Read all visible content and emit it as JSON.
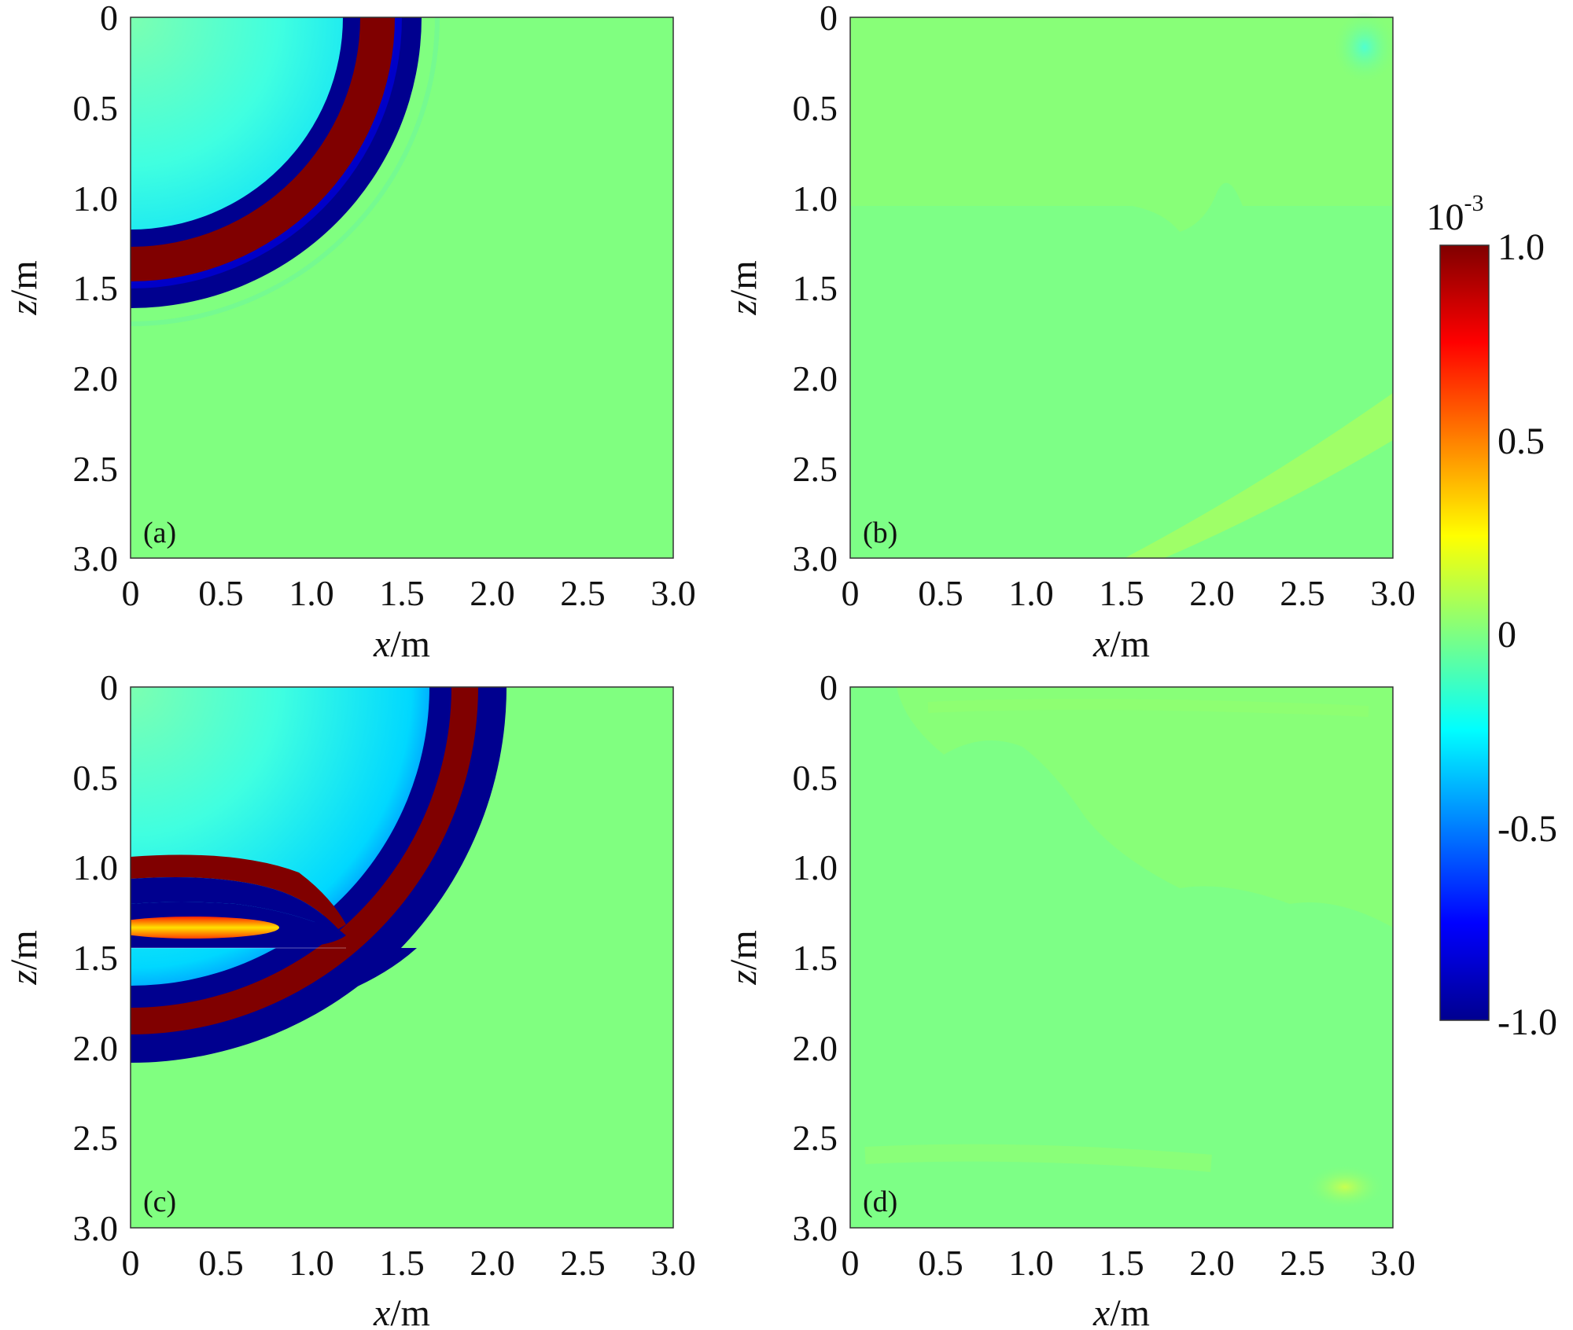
{
  "chart_data": [
    {
      "type": "heatmap",
      "panel_label": "(a)",
      "xlabel": {
        "var": "x",
        "unit": "/m"
      },
      "ylabel": {
        "var": "z",
        "unit": "/m"
      },
      "xlim": [
        0,
        3.0
      ],
      "ylim": [
        0,
        3.0
      ],
      "y_direction": "down",
      "xticks": [
        "0",
        "0.5",
        "1.0",
        "1.5",
        "2.0",
        "2.5",
        "3.0"
      ],
      "yticks": [
        "0",
        "0.5",
        "1.0",
        "1.5",
        "2.0",
        "2.5",
        "3.0"
      ],
      "field": {
        "background": 0.0,
        "source": {
          "x": 0,
          "z": 0
        },
        "inner_low_disc": {
          "radius": 1.3,
          "value": -0.45
        },
        "bands": [
          {
            "r_inner": 1.32,
            "r_outer": 1.52,
            "value": 1.0
          },
          {
            "r_inner": 1.52,
            "r_outer": 1.68,
            "value": -1.0
          }
        ],
        "inner_blue_rim": {
          "r_inner": 1.18,
          "r_outer": 1.32,
          "value": -1.0
        }
      }
    },
    {
      "type": "heatmap",
      "panel_label": "(b)",
      "xlabel": {
        "var": "x",
        "unit": "/m"
      },
      "ylabel": {
        "var": "z",
        "unit": "/m"
      },
      "xlim": [
        0,
        3.0
      ],
      "ylim": [
        0,
        3.0
      ],
      "y_direction": "down",
      "xticks": [
        "0",
        "0.5",
        "1.0",
        "1.5",
        "2.0",
        "2.5",
        "3.0"
      ],
      "yticks": [
        "0",
        "0.5",
        "1.0",
        "1.5",
        "2.0",
        "2.5",
        "3.0"
      ],
      "field": {
        "background": 0.0,
        "features": [
          {
            "kind": "region",
            "zmax": 1.1,
            "value": 0.05
          },
          {
            "kind": "spot",
            "x": 2.85,
            "z": 0.2,
            "value": -0.2
          },
          {
            "kind": "streak",
            "from": [
              2.0,
              3.0
            ],
            "to": [
              3.0,
              2.2
            ],
            "value": 0.15
          }
        ]
      }
    },
    {
      "type": "heatmap",
      "panel_label": "(c)",
      "xlabel": {
        "var": "x",
        "unit": "/m"
      },
      "ylabel": {
        "var": "z",
        "unit": "/m"
      },
      "xlim": [
        0,
        3.0
      ],
      "ylim": [
        0,
        3.0
      ],
      "y_direction": "down",
      "xticks": [
        "0",
        "0.5",
        "1.0",
        "1.5",
        "2.0",
        "2.5",
        "3.0"
      ],
      "yticks": [
        "0",
        "0.5",
        "1.0",
        "1.5",
        "2.0",
        "2.5",
        "3.0"
      ],
      "field": {
        "background": 0.0,
        "interface_depth": 1.5,
        "inner_low_disc": {
          "radius": 1.3,
          "value": -0.45
        },
        "direct_bands": [
          {
            "r_inner": 1.72,
            "r_outer": 1.95,
            "value": 1.0
          },
          {
            "r_inner": 1.95,
            "r_outer": 2.1,
            "value": -1.0
          }
        ],
        "reflected_bands": [
          {
            "z_top": 0.95,
            "z_bottom": 1.1,
            "value": 1.0
          },
          {
            "z_top": 1.55,
            "z_bottom": 1.75,
            "value": 1.0
          }
        ],
        "refracted_low": {
          "z_bottom": 1.82,
          "value": -1.0
        },
        "yellow_lens": {
          "x": 0.35,
          "z": 1.35,
          "value": 0.35
        }
      }
    },
    {
      "type": "heatmap",
      "panel_label": "(d)",
      "xlabel": {
        "var": "x",
        "unit": "/m"
      },
      "ylabel": {
        "var": "z",
        "unit": "/m"
      },
      "xlim": [
        0,
        3.0
      ],
      "ylim": [
        0,
        3.0
      ],
      "y_direction": "down",
      "xticks": [
        "0",
        "0.5",
        "1.0",
        "1.5",
        "2.0",
        "2.5",
        "3.0"
      ],
      "yticks": [
        "0",
        "0.5",
        "1.0",
        "1.5",
        "2.0",
        "2.5",
        "3.0"
      ],
      "field": {
        "background": 0.0,
        "features": [
          {
            "kind": "region",
            "zmax": 1.2,
            "value": 0.05
          },
          {
            "kind": "streak",
            "from": [
              0.2,
              2.65
            ],
            "to": [
              2.0,
              2.65
            ],
            "value": 0.07
          },
          {
            "kind": "spot",
            "x": 2.75,
            "z": 2.75,
            "value": 0.2
          }
        ]
      }
    }
  ],
  "colorbar": {
    "exponent_label": "10",
    "exponent_sup": "-3",
    "ticks": [
      "1.0",
      "0.5",
      "0",
      "-0.5",
      "-1.0"
    ],
    "range": [
      -1.0,
      1.0
    ],
    "colormap": "jet",
    "colors": [
      "#00008f",
      "#0000ff",
      "#00ffff",
      "#80ff80",
      "#ffff00",
      "#ff0000",
      "#800000"
    ]
  }
}
